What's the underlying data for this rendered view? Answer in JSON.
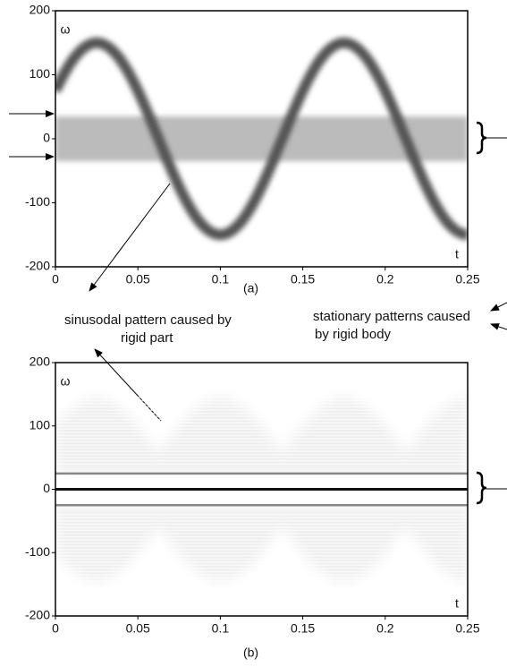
{
  "panels": [
    {
      "caption": "(a)",
      "xlabel": "t",
      "ylabel": "ω",
      "xlim": [
        0,
        0.25
      ],
      "ylim": [
        -200,
        200
      ],
      "xticks": [
        0,
        0.05,
        0.1,
        0.15,
        0.2,
        0.25
      ],
      "yticks": [
        200,
        100,
        0,
        -100,
        -200
      ]
    },
    {
      "caption": "(b)",
      "xlabel": "t",
      "ylabel": "ω",
      "xlim": [
        0,
        0.25
      ],
      "ylim": [
        -200,
        200
      ],
      "xticks": [
        0,
        0.05,
        0.1,
        0.15,
        0.2,
        0.25
      ],
      "yticks": [
        200,
        100,
        0,
        -100,
        -200
      ]
    }
  ],
  "annotations": {
    "sinusoidal": [
      "sinusodal pattern caused by",
      "rigid part"
    ],
    "stationary": [
      "stationary patterns caused",
      "by rigid body"
    ]
  }
}
